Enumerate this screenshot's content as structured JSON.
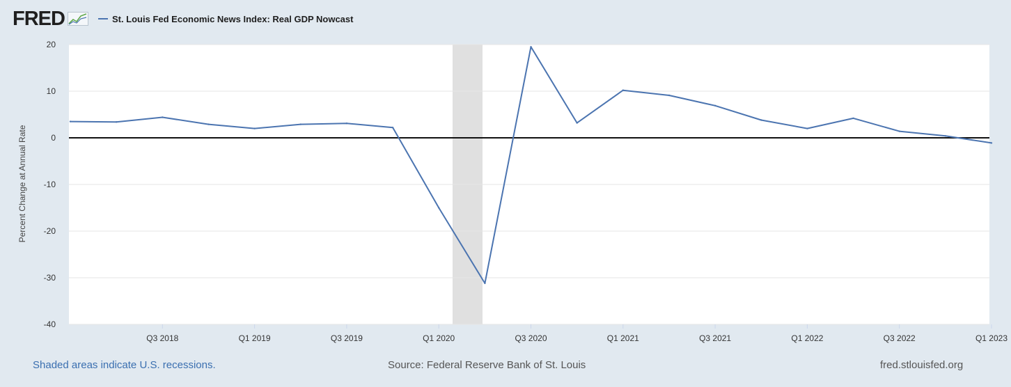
{
  "header": {
    "logo_text": "FRED",
    "series_label": "St. Louis Fed Economic News Index: Real GDP Nowcast"
  },
  "colors": {
    "series": "#4b74b0",
    "recession": "#e0e0e0",
    "background": "#e1e9f0",
    "plot": "#ffffff"
  },
  "footer": {
    "recessions_note": "Shaded areas indicate U.S. recessions.",
    "source": "Source: Federal Reserve Bank of St. Louis",
    "site": "fred.stlouisfed.org"
  },
  "chart_data": {
    "type": "line",
    "ylabel": "Percent Change at Annual Rate",
    "ylim": [
      -40,
      20
    ],
    "yticks": [
      20,
      10,
      0,
      -10,
      -20,
      -30,
      -40
    ],
    "grid": true,
    "legend_position": "top-left",
    "x_tick_labels": [
      "Q3 2018",
      "Q1 2019",
      "Q3 2019",
      "Q1 2020",
      "Q3 2020",
      "Q1 2021",
      "Q3 2021",
      "Q1 2022",
      "Q3 2022",
      "Q1 2023"
    ],
    "recession": {
      "start": "2020 Q1 (Feb)",
      "end": "2020 Q2 (Apr)"
    },
    "series": [
      {
        "x": [
          "2018 Q1",
          "2018 Q2",
          "2018 Q3",
          "2018 Q4",
          "2019 Q1",
          "2019 Q2",
          "2019 Q3",
          "2019 Q4",
          "2020 Q1",
          "2020 Q2",
          "2020 Q3",
          "2020 Q4",
          "2021 Q1",
          "2021 Q2",
          "2021 Q3",
          "2021 Q4",
          "2022 Q1",
          "2022 Q2",
          "2022 Q3",
          "2022 Q4",
          "2023 Q1"
        ],
        "values": [
          3.5,
          3.4,
          4.4,
          2.9,
          2.0,
          2.9,
          3.1,
          2.2,
          -15.0,
          -31.2,
          19.5,
          3.2,
          10.2,
          9.1,
          6.9,
          3.8,
          2.0,
          4.2,
          1.4,
          0.4,
          -1.1
        ]
      }
    ]
  }
}
